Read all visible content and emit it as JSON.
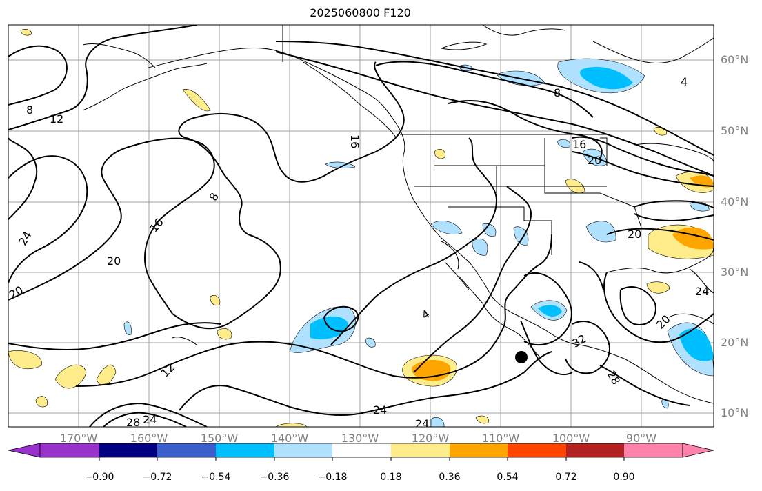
{
  "title": "2025060800 F120",
  "lon_labels": [
    "170°W",
    "160°W",
    "150°W",
    "140°W",
    "130°W",
    "120°W",
    "110°W",
    "100°W",
    "90°W"
  ],
  "lat_labels": [
    "60°N",
    "50°N",
    "40°N",
    "30°N",
    "20°N",
    "10°N"
  ],
  "contour_labels": [
    "8",
    "12",
    "16",
    "8",
    "24",
    "20",
    "20",
    "16",
    "4",
    "20",
    "8",
    "4",
    "16",
    "20",
    "20",
    "24",
    "20",
    "32",
    "12",
    "28",
    "24",
    "28",
    "24",
    "24"
  ],
  "colorbar": {
    "ticks": [
      "−0.90",
      "−0.72",
      "−0.54",
      "−0.36",
      "−0.18",
      "0.18",
      "0.36",
      "0.54",
      "0.72",
      "0.90"
    ],
    "colors": [
      "#9932cc",
      "#000080",
      "#3a5fcd",
      "#00bfff",
      "#b0e2ff",
      "#ffffff",
      "#ffec8b",
      "#ffa500",
      "#ff4500",
      "#b22222",
      "#ff82ab"
    ]
  },
  "marker": "storm-center-dot"
}
